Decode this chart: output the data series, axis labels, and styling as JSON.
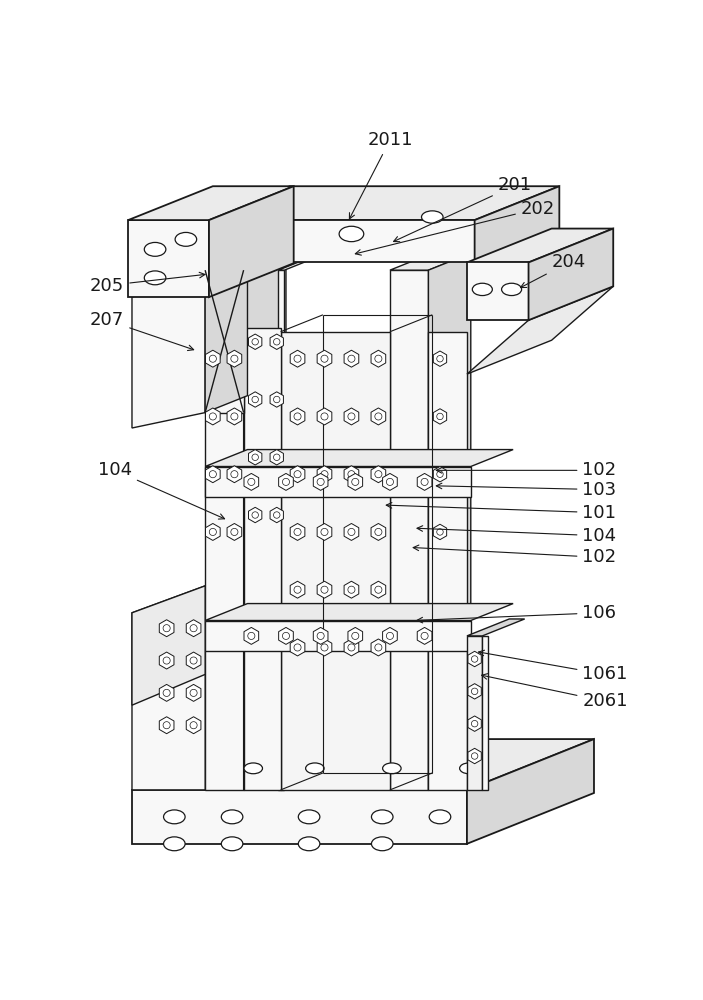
{
  "bg_color": "#ffffff",
  "lc": "#1a1a1a",
  "lw": 1.0,
  "lw_thick": 1.3,
  "face_light": "#f8f8f8",
  "face_mid": "#ebebeb",
  "face_dark": "#d8d8d8",
  "face_darker": "#c8c8c8"
}
